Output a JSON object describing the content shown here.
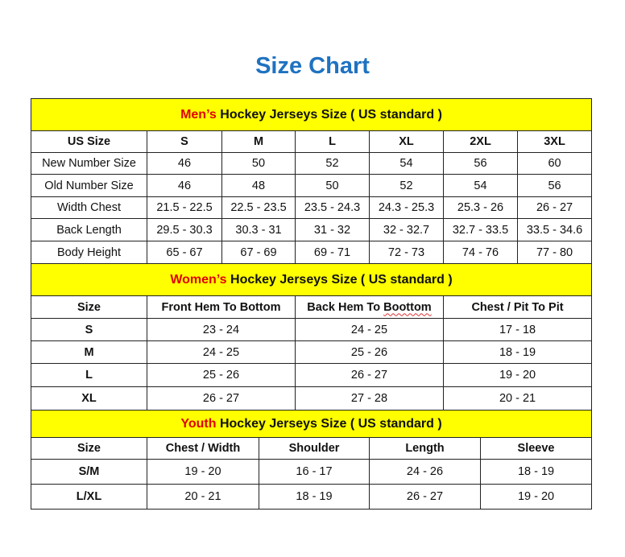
{
  "title": "Size Chart",
  "colors": {
    "title": "#1f72c0",
    "header_bg": "#ffff00",
    "accent": "#e00000"
  },
  "men": {
    "heading_accent": "Men’s",
    "heading_rest": " Hockey Jerseys Size ( US standard )",
    "columns": [
      "US Size",
      "S",
      "M",
      "L",
      "XL",
      "2XL",
      "3XL"
    ],
    "rows": [
      [
        "New Number Size",
        "46",
        "50",
        "52",
        "54",
        "56",
        "60"
      ],
      [
        "Old Number Size",
        "46",
        "48",
        "50",
        "52",
        "54",
        "56"
      ],
      [
        "Width Chest",
        "21.5 - 22.5",
        "22.5 - 23.5",
        "23.5 - 24.3",
        "24.3 - 25.3",
        "25.3 - 26",
        "26 - 27"
      ],
      [
        "Back Length",
        "29.5 - 30.3",
        "30.3 - 31",
        "31 - 32",
        "32 - 32.7",
        "32.7 - 33.5",
        "33.5 - 34.6"
      ],
      [
        "Body Height",
        "65 - 67",
        "67 - 69",
        "69 - 71",
        "72 - 73",
        "74 - 76",
        "77 - 80"
      ]
    ]
  },
  "women": {
    "heading_accent": "Women’s",
    "heading_rest": " Hockey Jerseys Size ( US standard )",
    "columns": [
      "Size",
      "Front Hem To Bottom",
      "Back Hem To Boottom",
      "Chest / Pit To Pit"
    ],
    "rows": [
      [
        "S",
        "23 - 24",
        "24 - 25",
        "17 - 18"
      ],
      [
        "M",
        "24 - 25",
        "25 - 26",
        "18 - 19"
      ],
      [
        "L",
        "25 - 26",
        "26 - 27",
        "19 - 20"
      ],
      [
        "XL",
        "26 - 27",
        "27 - 28",
        "20 - 21"
      ]
    ]
  },
  "youth": {
    "heading_accent": "Youth",
    "heading_rest": " Hockey Jerseys Size ( US standard )",
    "columns": [
      "Size",
      "Chest / Width",
      "Shoulder",
      "Length",
      "Sleeve"
    ],
    "rows": [
      [
        "S/M",
        "19 - 20",
        "16 - 17",
        "24 - 26",
        "18 - 19"
      ],
      [
        "L/XL",
        "20 - 21",
        "18 - 19",
        "26 - 27",
        "19 - 20"
      ]
    ]
  }
}
